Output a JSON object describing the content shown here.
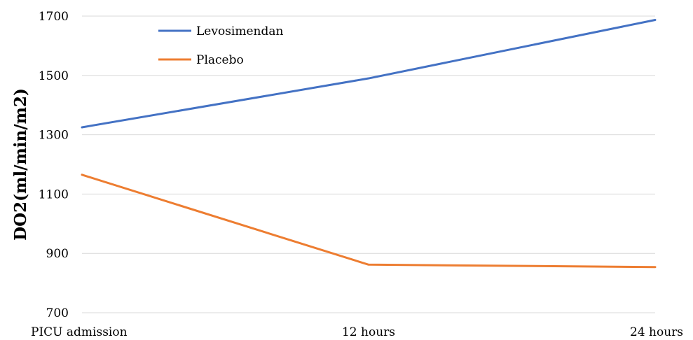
{
  "chart_data": {
    "type": "line",
    "categories": [
      "PICU admission",
      "12 hours",
      "24 hours"
    ],
    "series": [
      {
        "name": "Levosimendan",
        "values": [
          1325,
          1490,
          1687
        ],
        "color": "#4472c4"
      },
      {
        "name": "Placebo",
        "values": [
          1165,
          862,
          854
        ],
        "color": "#ed7d31"
      }
    ],
    "ylabel": "DO2(ml/min/m2)",
    "xlabel": "",
    "title": "",
    "ylim": [
      700,
      1700
    ],
    "yticks": [
      700,
      900,
      1100,
      1300,
      1500,
      1700
    ],
    "grid": true,
    "legend_position": "top-left"
  }
}
